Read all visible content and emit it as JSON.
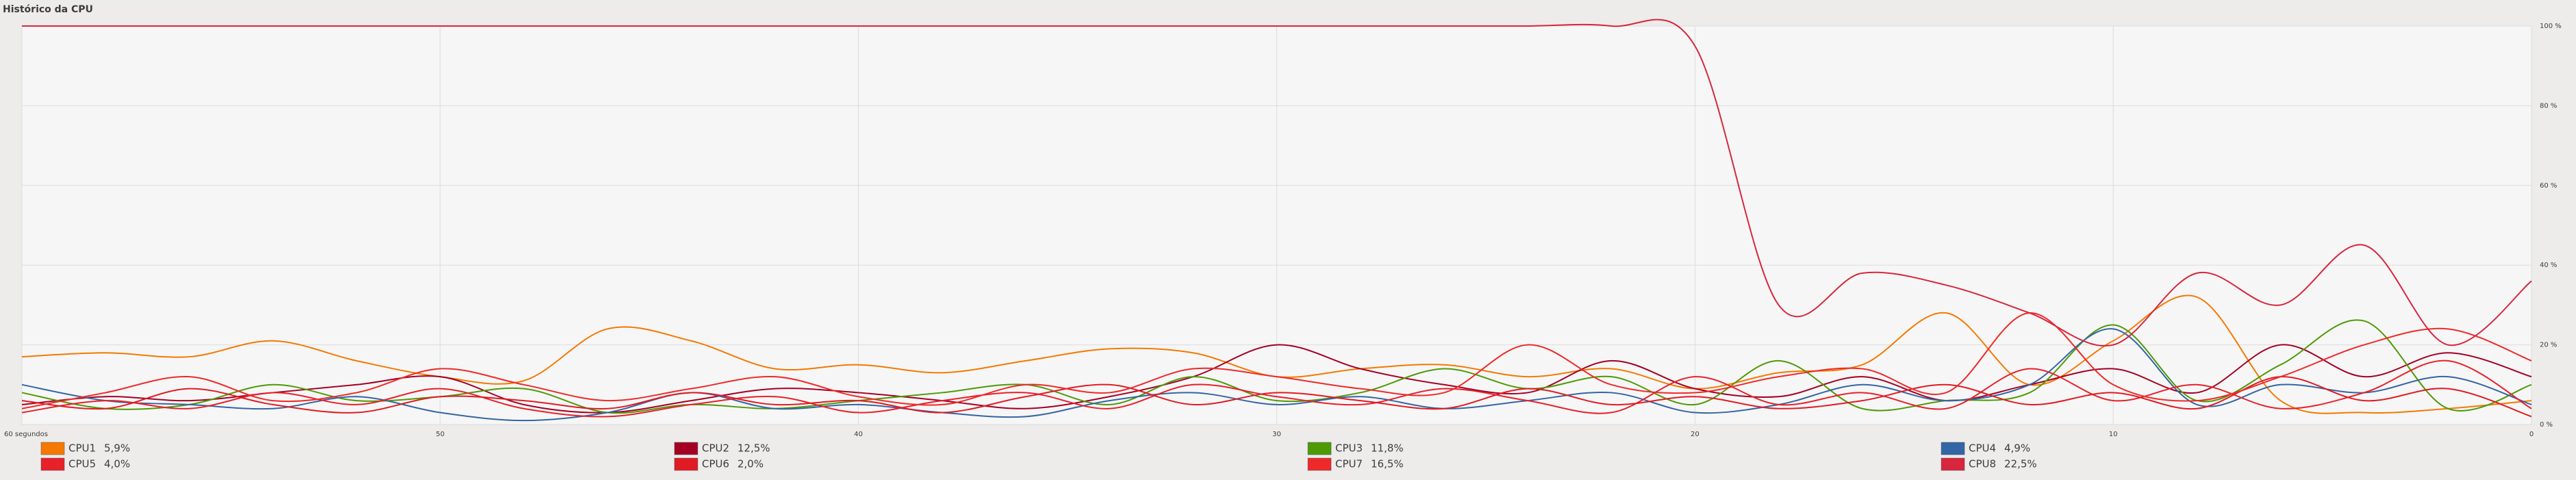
{
  "chart_data": {
    "type": "line",
    "title": "Histórico da CPU",
    "x": [
      60,
      58,
      56,
      54,
      52,
      50,
      48,
      46,
      44,
      42,
      40,
      38,
      36,
      34,
      32,
      30,
      28,
      26,
      24,
      22,
      20,
      18,
      16,
      14,
      12,
      10,
      8,
      6,
      4,
      2,
      0
    ],
    "xlim": [
      60,
      0
    ],
    "xticks": [
      {
        "value": 60,
        "label": "60 segundos"
      },
      50,
      40,
      30,
      20,
      10,
      0
    ],
    "ylim": [
      0,
      100
    ],
    "yticks": [
      {
        "value": 0,
        "label": "0 %"
      },
      {
        "value": 20,
        "label": "20 %"
      },
      {
        "value": 40,
        "label": "40 %"
      },
      {
        "value": 60,
        "label": "60 %"
      },
      {
        "value": 80,
        "label": "80 %"
      },
      {
        "value": 100,
        "label": "100 %"
      }
    ],
    "grid": true,
    "series": [
      {
        "name": "CPU1",
        "legend_label": "5,9%",
        "color": "#f57900",
        "values": [
          17,
          18,
          17,
          21,
          16,
          12,
          11,
          24,
          21,
          14,
          15,
          13,
          16,
          19,
          18,
          12,
          14,
          15,
          12,
          14,
          9,
          13,
          15,
          28,
          10,
          21,
          32,
          6,
          3,
          4,
          6
        ]
      },
      {
        "name": "CPU2",
        "legend_label": "12,5%",
        "color": "#a40024",
        "values": [
          5,
          7,
          6,
          8,
          10,
          12,
          5,
          3,
          6,
          9,
          8,
          6,
          4,
          7,
          12,
          20,
          14,
          10,
          8,
          16,
          9,
          7,
          12,
          6,
          10,
          14,
          8,
          20,
          12,
          18,
          12
        ]
      },
      {
        "name": "CPU3",
        "legend_label": "11,8%",
        "color": "#4e9a06",
        "values": [
          8,
          4,
          5,
          10,
          6,
          7,
          9,
          3,
          5,
          4,
          6,
          8,
          10,
          5,
          12,
          6,
          8,
          14,
          9,
          12,
          5,
          16,
          4,
          6,
          8,
          25,
          6,
          15,
          26,
          4,
          10
        ]
      },
      {
        "name": "CPU4",
        "legend_label": "4,9%",
        "color": "#3465a4",
        "values": [
          10,
          6,
          5,
          4,
          7,
          3,
          1,
          3,
          8,
          4,
          5,
          3,
          2,
          6,
          8,
          5,
          7,
          4,
          6,
          8,
          3,
          5,
          10,
          6,
          10,
          24,
          5,
          10,
          8,
          12,
          5
        ]
      },
      {
        "name": "CPU5",
        "legend_label": "4,0%",
        "color": "#e8202a",
        "values": [
          3,
          6,
          4,
          8,
          5,
          9,
          4,
          2,
          5,
          7,
          3,
          6,
          8,
          4,
          10,
          7,
          5,
          9,
          6,
          3,
          12,
          5,
          8,
          4,
          14,
          6,
          10,
          4,
          8,
          16,
          4
        ]
      },
      {
        "name": "CPU6",
        "legend_label": "2,0%",
        "color": "#e01b24",
        "values": [
          6,
          4,
          9,
          5,
          3,
          7,
          6,
          4,
          8,
          5,
          6,
          3,
          7,
          10,
          5,
          8,
          6,
          4,
          9,
          5,
          7,
          4,
          6,
          10,
          5,
          8,
          4,
          12,
          6,
          9,
          2
        ]
      },
      {
        "name": "CPU7",
        "legend_label": "16,5%",
        "color": "#ef2929",
        "values": [
          4,
          8,
          12,
          6,
          8,
          14,
          10,
          6,
          9,
          12,
          7,
          5,
          10,
          8,
          14,
          12,
          9,
          8,
          20,
          10,
          8,
          12,
          14,
          8,
          28,
          10,
          6,
          12,
          20,
          24,
          16
        ]
      },
      {
        "name": "CPU8",
        "legend_label": "22,5%",
        "color": "#d7263d",
        "values": [
          100,
          100,
          100,
          100,
          100,
          100,
          100,
          100,
          100,
          100,
          100,
          100,
          100,
          100,
          100,
          100,
          100,
          100,
          100,
          100,
          95,
          30,
          38,
          35,
          28,
          20,
          38,
          30,
          45,
          20,
          36
        ]
      }
    ]
  }
}
